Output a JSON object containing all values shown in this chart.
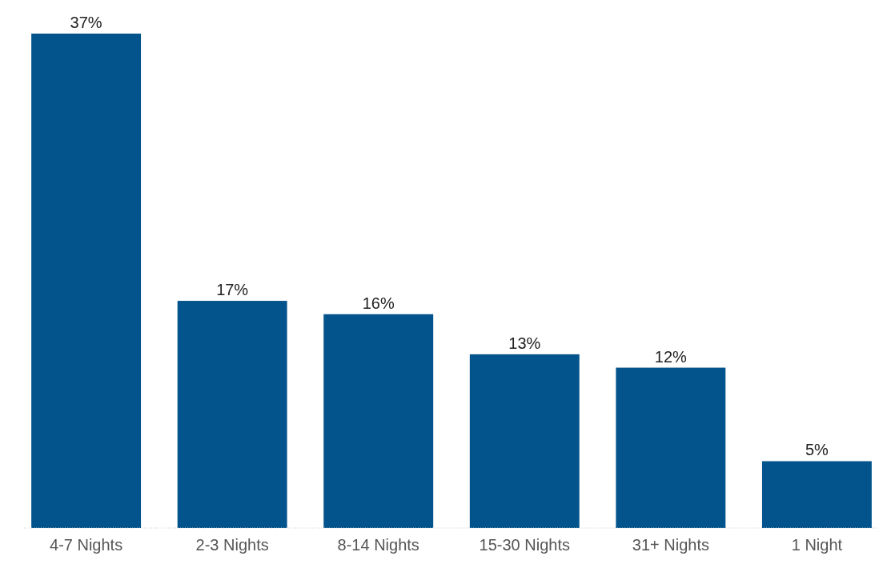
{
  "chart_data": {
    "type": "bar",
    "categories": [
      "4-7 Nights",
      "2-3 Nights",
      "8-14 Nights",
      "15-30 Nights",
      "31+ Nights",
      "1 Night"
    ],
    "values": [
      37,
      17,
      16,
      13,
      12,
      5
    ],
    "value_labels": [
      "37%",
      "17%",
      "16%",
      "13%",
      "12%",
      "5%"
    ],
    "color": "#03548c"
  }
}
